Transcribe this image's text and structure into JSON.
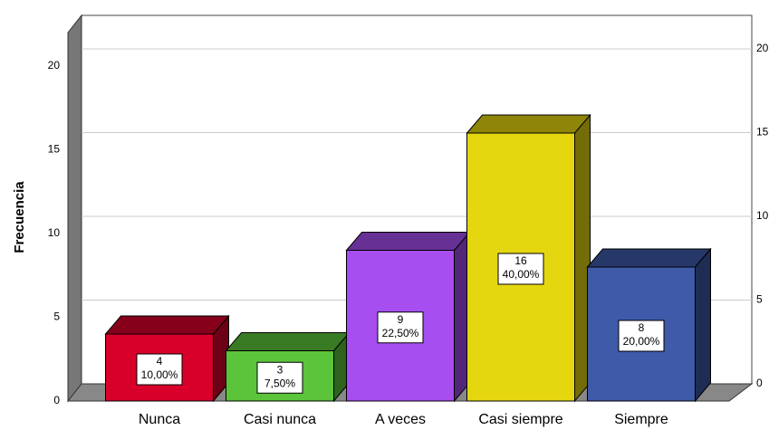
{
  "chart_data": {
    "type": "bar3d",
    "y_label": "Frecuencia",
    "categories": [
      "Nunca",
      "Casi nunca",
      "A veces",
      "Casi siempre",
      "Siempre"
    ],
    "values": [
      4,
      3,
      9,
      16,
      8
    ],
    "percentages": [
      10,
      7.5,
      22.5,
      40,
      20
    ],
    "percentage_labels": [
      "10,00%",
      "7,50%",
      "22,50%",
      "40,00%",
      "20,00%"
    ],
    "colors": [
      "#d8002b",
      "#5cc43a",
      "#a64ef0",
      "#e5d70f",
      "#3e5aa8"
    ],
    "ylim": [
      0,
      22
    ],
    "yticks": [
      0,
      5,
      10,
      15,
      20
    ],
    "grid": true
  }
}
